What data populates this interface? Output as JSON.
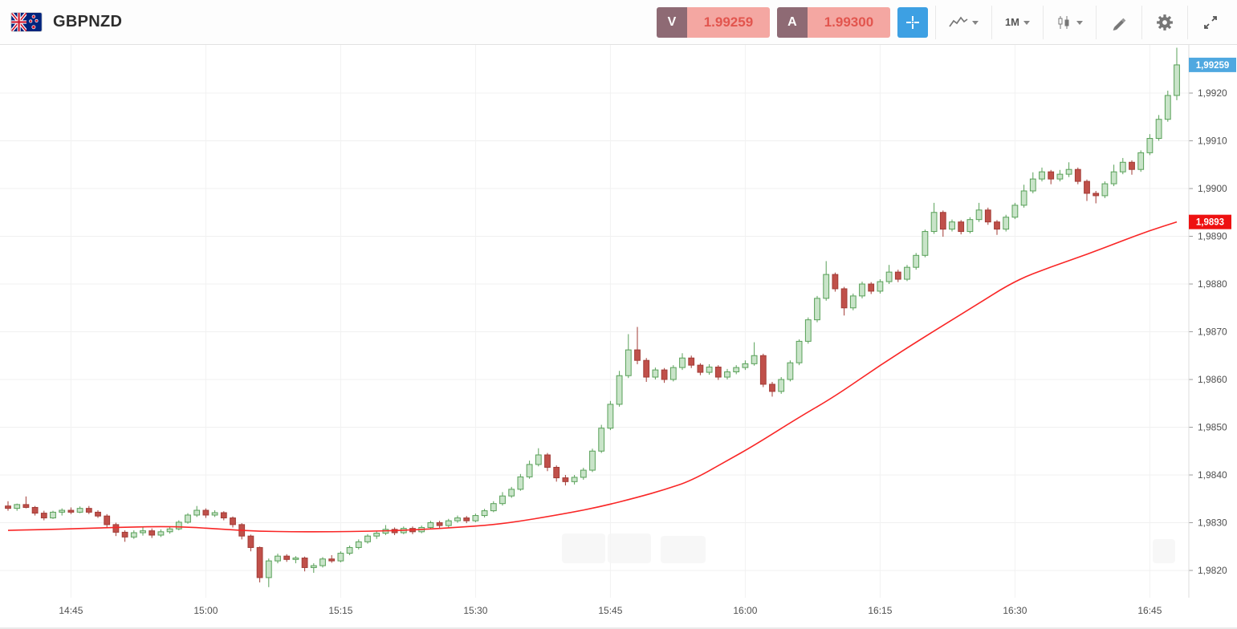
{
  "header": {
    "symbol": "GBPNZD",
    "sell": {
      "label": "V",
      "price": "1.99259"
    },
    "buy": {
      "label": "A",
      "price": "1.99300"
    },
    "timeframe": "1M"
  },
  "icons": {
    "instrument_flag": "GBP/NZD combined flag",
    "crosshair": "crosshair",
    "chart_type": "line-chart",
    "timeframe_dropdown": "chevron-down",
    "candle_style": "candlesticks",
    "drawing_tools": "pencil",
    "settings": "gear",
    "fullscreen": "expand-arrows"
  },
  "chart_data": {
    "type": "candlestick",
    "symbol": "GBPNZD",
    "timeframe": "1M",
    "x_start_time": "14:38",
    "x_interval_minutes": 1,
    "grid": true,
    "legend": "none",
    "y_axis": {
      "min": 1.9815,
      "max": 1.993,
      "grid_step": 0.001
    },
    "last_price": 1.99259,
    "last_price_label": "1,99259",
    "ma_badge_label": "1,9893",
    "overlay": "moving-average-red-line",
    "y_ticks": [
      {
        "value": 1.982,
        "label": "1,9820"
      },
      {
        "value": 1.983,
        "label": "1,9830"
      },
      {
        "value": 1.984,
        "label": "1,9840"
      },
      {
        "value": 1.985,
        "label": "1,9850"
      },
      {
        "value": 1.986,
        "label": "1,9860"
      },
      {
        "value": 1.987,
        "label": "1,9870"
      },
      {
        "value": 1.988,
        "label": "1,9880"
      },
      {
        "value": 1.989,
        "label": "1,9890"
      },
      {
        "value": 1.99,
        "label": "1,9900"
      },
      {
        "value": 1.991,
        "label": "1,9910"
      },
      {
        "value": 1.992,
        "label": "1,9920"
      }
    ],
    "x_ticks": [
      {
        "index": 7,
        "label": "14:45"
      },
      {
        "index": 22,
        "label": "15:00"
      },
      {
        "index": 37,
        "label": "15:15"
      },
      {
        "index": 52,
        "label": "15:30"
      },
      {
        "index": 67,
        "label": "15:45"
      },
      {
        "index": 82,
        "label": "16:00"
      },
      {
        "index": 97,
        "label": "16:15"
      },
      {
        "index": 112,
        "label": "16:30"
      },
      {
        "index": 127,
        "label": "16:45"
      }
    ],
    "candles": [
      [
        1.98335,
        1.98345,
        1.98325,
        1.9833
      ],
      [
        1.9833,
        1.9834,
        1.98325,
        1.98338
      ],
      [
        1.98338,
        1.98355,
        1.9833,
        1.98332
      ],
      [
        1.98332,
        1.98335,
        1.98315,
        1.9832
      ],
      [
        1.9832,
        1.98325,
        1.98305,
        1.9831
      ],
      [
        1.9831,
        1.98325,
        1.98308,
        1.98322
      ],
      [
        1.98322,
        1.9833,
        1.98315,
        1.98326
      ],
      [
        1.98326,
        1.98332,
        1.98318,
        1.98322
      ],
      [
        1.98322,
        1.98334,
        1.9832,
        1.9833
      ],
      [
        1.9833,
        1.98335,
        1.98318,
        1.98322
      ],
      [
        1.98322,
        1.98326,
        1.9831,
        1.98314
      ],
      [
        1.98314,
        1.98318,
        1.9829,
        1.98296
      ],
      [
        1.98296,
        1.983,
        1.98272,
        1.9828
      ],
      [
        1.9828,
        1.98284,
        1.9826,
        1.9827
      ],
      [
        1.9827,
        1.98284,
        1.98266,
        1.98279
      ],
      [
        1.98279,
        1.9829,
        1.98273,
        1.98283
      ],
      [
        1.98283,
        1.98288,
        1.98268,
        1.98274
      ],
      [
        1.98274,
        1.98286,
        1.9827,
        1.98281
      ],
      [
        1.98281,
        1.98292,
        1.98277,
        1.98287
      ],
      [
        1.98287,
        1.98305,
        1.98284,
        1.98301
      ],
      [
        1.98301,
        1.9832,
        1.98298,
        1.98316
      ],
      [
        1.98316,
        1.98335,
        1.98312,
        1.98326
      ],
      [
        1.98326,
        1.9833,
        1.9831,
        1.98316
      ],
      [
        1.98316,
        1.98326,
        1.98312,
        1.98321
      ],
      [
        1.98321,
        1.98324,
        1.98305,
        1.9831
      ],
      [
        1.9831,
        1.98313,
        1.9829,
        1.98296
      ],
      [
        1.98296,
        1.98299,
        1.98265,
        1.98272
      ],
      [
        1.98272,
        1.98275,
        1.9824,
        1.98248
      ],
      [
        1.98248,
        1.9825,
        1.98175,
        1.98185
      ],
      [
        1.98185,
        1.98225,
        1.98165,
        1.9822
      ],
      [
        1.9822,
        1.98235,
        1.98215,
        1.9823
      ],
      [
        1.9823,
        1.98234,
        1.98218,
        1.98223
      ],
      [
        1.98223,
        1.9823,
        1.98215,
        1.98226
      ],
      [
        1.98226,
        1.98229,
        1.98198,
        1.98206
      ],
      [
        1.98206,
        1.98215,
        1.98195,
        1.9821
      ],
      [
        1.9821,
        1.98228,
        1.98206,
        1.98224
      ],
      [
        1.98224,
        1.98232,
        1.98216,
        1.9822
      ],
      [
        1.9822,
        1.9824,
        1.98217,
        1.98236
      ],
      [
        1.98236,
        1.98252,
        1.98232,
        1.98248
      ],
      [
        1.98248,
        1.98265,
        1.98244,
        1.9826
      ],
      [
        1.9826,
        1.98276,
        1.98256,
        1.98272
      ],
      [
        1.98272,
        1.98283,
        1.98266,
        1.98278
      ],
      [
        1.98278,
        1.98295,
        1.98274,
        1.98286
      ],
      [
        1.98286,
        1.9829,
        1.98274,
        1.98279
      ],
      [
        1.98279,
        1.98292,
        1.98276,
        1.98288
      ],
      [
        1.98288,
        1.98292,
        1.98276,
        1.98281
      ],
      [
        1.98281,
        1.98294,
        1.98278,
        1.9829
      ],
      [
        1.9829,
        1.98304,
        1.98286,
        1.983
      ],
      [
        1.983,
        1.98304,
        1.98289,
        1.98294
      ],
      [
        1.98294,
        1.98308,
        1.9829,
        1.98304
      ],
      [
        1.98304,
        1.98315,
        1.983,
        1.9831
      ],
      [
        1.9831,
        1.98314,
        1.98299,
        1.98304
      ],
      [
        1.98304,
        1.98319,
        1.98301,
        1.98315
      ],
      [
        1.98315,
        1.98329,
        1.98311,
        1.98325
      ],
      [
        1.98325,
        1.98345,
        1.98322,
        1.9834
      ],
      [
        1.9834,
        1.98364,
        1.98336,
        1.98356
      ],
      [
        1.98356,
        1.98375,
        1.98352,
        1.9837
      ],
      [
        1.9837,
        1.98402,
        1.98367,
        1.98396
      ],
      [
        1.98396,
        1.9843,
        1.98392,
        1.98422
      ],
      [
        1.98422,
        1.98456,
        1.98418,
        1.98442
      ],
      [
        1.98442,
        1.98446,
        1.98408,
        1.98416
      ],
      [
        1.98416,
        1.9842,
        1.98386,
        1.98394
      ],
      [
        1.98394,
        1.984,
        1.98378,
        1.98386
      ],
      [
        1.98386,
        1.984,
        1.9838,
        1.98395
      ],
      [
        1.98395,
        1.98415,
        1.9839,
        1.9841
      ],
      [
        1.9841,
        1.98455,
        1.98406,
        1.9845
      ],
      [
        1.9845,
        1.98505,
        1.98446,
        1.98498
      ],
      [
        1.98498,
        1.98555,
        1.98494,
        1.98548
      ],
      [
        1.98548,
        1.98618,
        1.98543,
        1.98608
      ],
      [
        1.98608,
        1.98695,
        1.98603,
        1.98662
      ],
      [
        1.98662,
        1.9871,
        1.98632,
        1.9864
      ],
      [
        1.9864,
        1.98645,
        1.98595,
        1.98605
      ],
      [
        1.98605,
        1.98625,
        1.986,
        1.9862
      ],
      [
        1.9862,
        1.98624,
        1.98593,
        1.986
      ],
      [
        1.986,
        1.9863,
        1.98596,
        1.98625
      ],
      [
        1.98625,
        1.98655,
        1.9862,
        1.98645
      ],
      [
        1.98645,
        1.9865,
        1.98624,
        1.9863
      ],
      [
        1.9863,
        1.98634,
        1.98609,
        1.98615
      ],
      [
        1.98615,
        1.98632,
        1.9861,
        1.98626
      ],
      [
        1.98626,
        1.9863,
        1.98599,
        1.98605
      ],
      [
        1.98605,
        1.98622,
        1.986,
        1.98616
      ],
      [
        1.98616,
        1.9863,
        1.98611,
        1.98625
      ],
      [
        1.98625,
        1.9864,
        1.9862,
        1.98633
      ],
      [
        1.98633,
        1.98678,
        1.98629,
        1.9865
      ],
      [
        1.9865,
        1.98654,
        1.98584,
        1.9859
      ],
      [
        1.9859,
        1.98595,
        1.98564,
        1.98575
      ],
      [
        1.98575,
        1.98605,
        1.9857,
        1.986
      ],
      [
        1.986,
        1.9864,
        1.98596,
        1.98635
      ],
      [
        1.98635,
        1.98684,
        1.9863,
        1.9868
      ],
      [
        1.9868,
        1.9873,
        1.98675,
        1.98725
      ],
      [
        1.98725,
        1.98775,
        1.9872,
        1.9877
      ],
      [
        1.9877,
        1.98848,
        1.98765,
        1.9882
      ],
      [
        1.9882,
        1.98824,
        1.98784,
        1.9879
      ],
      [
        1.9879,
        1.98794,
        1.98734,
        1.9875
      ],
      [
        1.9875,
        1.9878,
        1.98745,
        1.98775
      ],
      [
        1.98775,
        1.98805,
        1.9877,
        1.988
      ],
      [
        1.988,
        1.98804,
        1.98779,
        1.98785
      ],
      [
        1.98785,
        1.9881,
        1.9878,
        1.98805
      ],
      [
        1.98805,
        1.9884,
        1.988,
        1.98825
      ],
      [
        1.98825,
        1.9883,
        1.98804,
        1.9881
      ],
      [
        1.9881,
        1.9884,
        1.98806,
        1.98835
      ],
      [
        1.98835,
        1.98865,
        1.9883,
        1.9886
      ],
      [
        1.9886,
        1.98914,
        1.98856,
        1.9891
      ],
      [
        1.9891,
        1.9897,
        1.98905,
        1.9895
      ],
      [
        1.9895,
        1.98954,
        1.98899,
        1.98915
      ],
      [
        1.98915,
        1.98935,
        1.9891,
        1.9893
      ],
      [
        1.9893,
        1.98934,
        1.98904,
        1.9891
      ],
      [
        1.9891,
        1.9894,
        1.98906,
        1.98935
      ],
      [
        1.98935,
        1.9897,
        1.9893,
        1.98955
      ],
      [
        1.98955,
        1.9896,
        1.98924,
        1.9893
      ],
      [
        1.9893,
        1.98934,
        1.98903,
        1.98915
      ],
      [
        1.98915,
        1.98945,
        1.9891,
        1.9894
      ],
      [
        1.9894,
        1.9897,
        1.98936,
        1.98965
      ],
      [
        1.98965,
        1.99008,
        1.9896,
        1.98995
      ],
      [
        1.98995,
        1.99034,
        1.9899,
        1.9902
      ],
      [
        1.9902,
        1.99044,
        1.99015,
        1.99035
      ],
      [
        1.99035,
        1.99039,
        1.99009,
        1.9902
      ],
      [
        1.9902,
        1.99039,
        1.99015,
        1.9903
      ],
      [
        1.9903,
        1.99055,
        1.99024,
        1.9904
      ],
      [
        1.9904,
        1.99044,
        1.99009,
        1.99015
      ],
      [
        1.99015,
        1.99019,
        1.98974,
        1.9899
      ],
      [
        1.9899,
        1.98995,
        1.98969,
        1.98985
      ],
      [
        1.98985,
        1.99015,
        1.9898,
        1.9901
      ],
      [
        1.9901,
        1.9905,
        1.99005,
        1.99035
      ],
      [
        1.99035,
        1.99064,
        1.9903,
        1.99055
      ],
      [
        1.99055,
        1.99059,
        1.99029,
        1.9904
      ],
      [
        1.9904,
        1.9908,
        1.99035,
        1.99075
      ],
      [
        1.99075,
        1.99114,
        1.9907,
        1.99105
      ],
      [
        1.99105,
        1.99154,
        1.991,
        1.99145
      ],
      [
        1.99145,
        1.99205,
        1.9914,
        1.99195
      ],
      [
        1.99195,
        1.99295,
        1.99185,
        1.99259
      ]
    ],
    "ma_points": [
      [
        0,
        1.98284
      ],
      [
        5,
        1.98286
      ],
      [
        10,
        1.98289
      ],
      [
        14,
        1.98291
      ],
      [
        17,
        1.98292
      ],
      [
        20,
        1.98291
      ],
      [
        24,
        1.98286
      ],
      [
        28,
        1.98282
      ],
      [
        32,
        1.98281
      ],
      [
        36,
        1.98281
      ],
      [
        40,
        1.98282
      ],
      [
        44,
        1.98284
      ],
      [
        49,
        1.98289
      ],
      [
        55,
        1.98297
      ],
      [
        62,
        1.98319
      ],
      [
        66,
        1.98334
      ],
      [
        70,
        1.98353
      ],
      [
        73,
        1.98369
      ],
      [
        76,
        1.98388
      ],
      [
        80,
        1.9843
      ],
      [
        83,
        1.98462
      ],
      [
        88,
        1.98521
      ],
      [
        92,
        1.98565
      ],
      [
        97,
        1.9863
      ],
      [
        102,
        1.9869
      ],
      [
        107,
        1.98748
      ],
      [
        112,
        1.98807
      ],
      [
        116,
        1.98836
      ],
      [
        120,
        1.98862
      ],
      [
        124,
        1.98891
      ],
      [
        127,
        1.98912
      ],
      [
        130,
        1.9893
      ]
    ],
    "colors": {
      "up_fill": "#c9e4c9",
      "up_border": "#58a058",
      "down_fill": "#c0504a",
      "down_border": "#a23b36",
      "ma": "#f92626",
      "grid": "#f0f0f0",
      "vgrid": "#f2f2f2",
      "axis_text": "#4f4f4f",
      "axis_line": "#dcdcdc",
      "last_badge": "#4fa8e0",
      "ma_badge": "#ee1111"
    }
  }
}
